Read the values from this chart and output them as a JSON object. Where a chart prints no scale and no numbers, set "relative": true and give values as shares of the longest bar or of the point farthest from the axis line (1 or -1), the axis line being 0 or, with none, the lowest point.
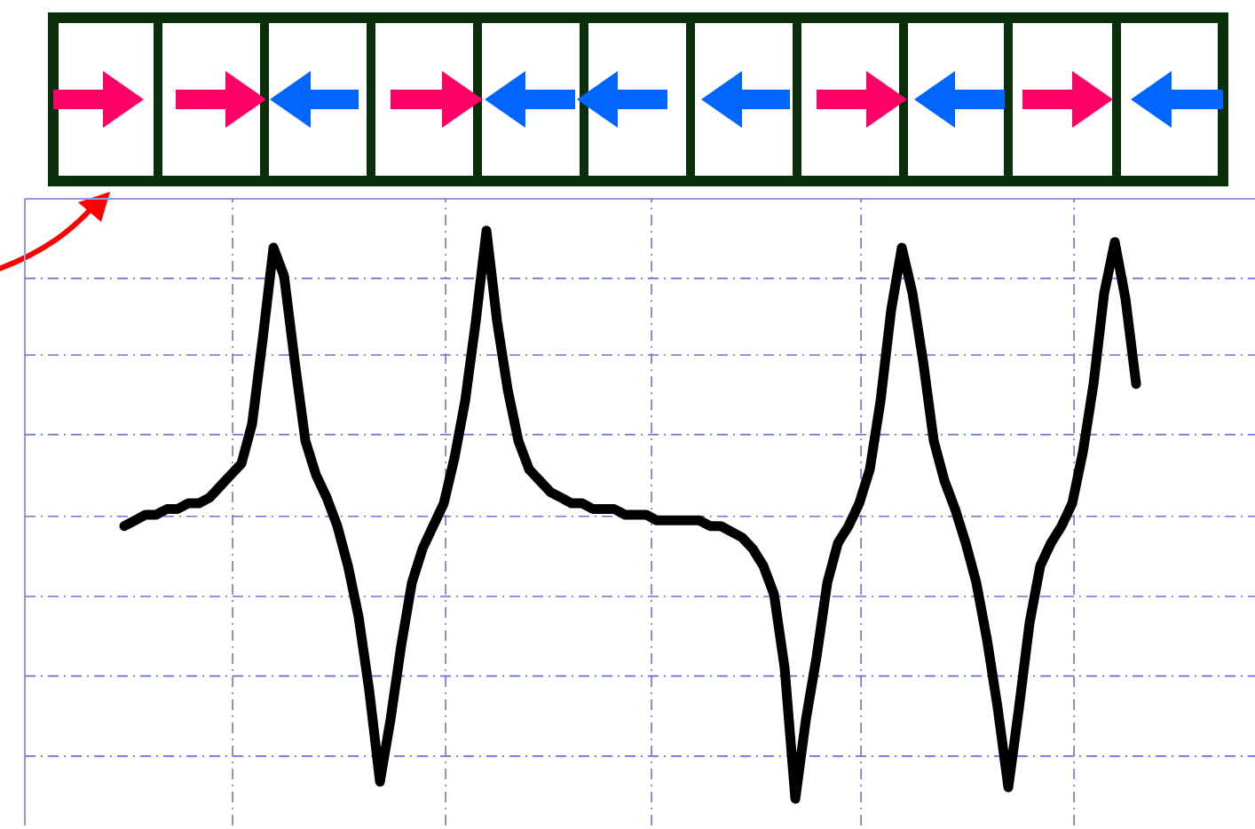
{
  "chart_data": {
    "type": "line",
    "relative": true,
    "grid": true,
    "categories": [
      null,
      null,
      null,
      null,
      null,
      null,
      null,
      null,
      null,
      null,
      null,
      null,
      null,
      null,
      null,
      null,
      null,
      null,
      null,
      null,
      null,
      null,
      null,
      null,
      null,
      null,
      null,
      null,
      null,
      null,
      null,
      null,
      null,
      null,
      null,
      null,
      null,
      null,
      null,
      null,
      null,
      null,
      null,
      null,
      null,
      null,
      null,
      null,
      null,
      null,
      null,
      null,
      null,
      null,
      null,
      null,
      null,
      null,
      null,
      null,
      null,
      null,
      null,
      null,
      null,
      null,
      null,
      null,
      null,
      null,
      null,
      null,
      null,
      null,
      null,
      null,
      null,
      null,
      null,
      null,
      null,
      null,
      null,
      null,
      null,
      null,
      null,
      null,
      null,
      null,
      null,
      null,
      null,
      null,
      null,
      null
    ],
    "series": [
      {
        "color": "#000000",
        "values": [
          0.48,
          0.49,
          0.5,
          0.5,
          0.51,
          0.51,
          0.52,
          0.52,
          0.53,
          0.55,
          0.57,
          0.59,
          0.66,
          0.81,
          0.97,
          0.92,
          0.77,
          0.63,
          0.57,
          0.53,
          0.48,
          0.41,
          0.32,
          0.19,
          0.03,
          0.14,
          0.27,
          0.38,
          0.44,
          0.48,
          0.52,
          0.6,
          0.7,
          0.84,
          1.0,
          0.84,
          0.72,
          0.63,
          0.58,
          0.56,
          0.54,
          0.53,
          0.52,
          0.52,
          0.51,
          0.51,
          0.51,
          0.5,
          0.5,
          0.5,
          0.49,
          0.49,
          0.49,
          0.49,
          0.49,
          0.48,
          0.48,
          0.47,
          0.46,
          0.44,
          0.41,
          0.36,
          0.23,
          0,
          0.14,
          0.25,
          0.38,
          0.45,
          0.48,
          0.52,
          0.58,
          0.7,
          0.86,
          0.97,
          0.89,
          0.77,
          0.63,
          0.56,
          0.51,
          0.45,
          0.38,
          0.28,
          0.16,
          0.02,
          0.16,
          0.31,
          0.41,
          0.45,
          0.48,
          0.52,
          0.61,
          0.73,
          0.89,
          0.98,
          0.88,
          0.73
        ]
      }
    ]
  }
}
